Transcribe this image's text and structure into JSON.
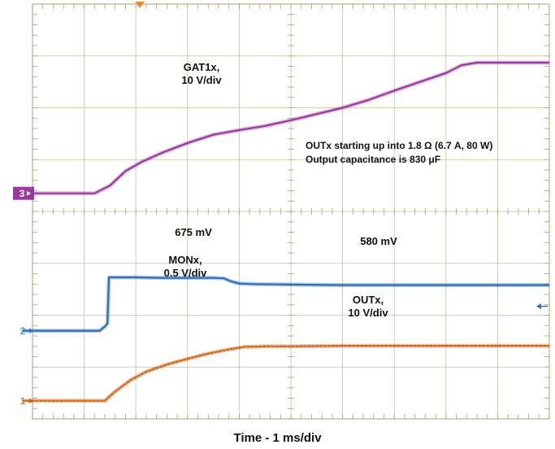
{
  "chart_data": {
    "type": "line",
    "title": "",
    "xlabel": "Time - 1 ms/div",
    "grid": true,
    "divisions": {
      "x": 10,
      "y": 8
    },
    "annotations": {
      "gat_label": [
        "GAT1x,",
        "10 V/div"
      ],
      "note": [
        "OUTx starting up into 1.8 Ω (6.7 A, 80 W)",
        "Output capacitance is 830 μF"
      ],
      "mon_peak": "675 mV",
      "mon_final": "580 mV",
      "mon_label": [
        "MONx,",
        "0.5 V/div"
      ],
      "out_label": [
        "OUTx,",
        "10 V/div"
      ]
    },
    "channel_markers": [
      "3",
      "2",
      "1"
    ],
    "units": {
      "x": "div",
      "y": "div"
    },
    "series": [
      {
        "name": "GAT1x",
        "marker": "3",
        "color": "#9a3a9f",
        "x": [
          -0.2,
          1.2,
          1.5,
          1.8,
          2.1,
          2.5,
          3.0,
          3.5,
          4.0,
          4.5,
          5.0,
          5.5,
          6.0,
          6.5,
          7.0,
          7.5,
          8.0,
          8.3,
          8.6,
          10.0
        ],
        "y": [
          4.35,
          4.35,
          4.5,
          4.78,
          4.95,
          5.13,
          5.32,
          5.48,
          5.57,
          5.65,
          5.76,
          5.88,
          6.0,
          6.15,
          6.33,
          6.5,
          6.67,
          6.82,
          6.87,
          6.87
        ]
      },
      {
        "name": "MONx",
        "marker": "2",
        "color": "#2e6fb5",
        "x": [
          -0.2,
          1.3,
          1.4,
          1.45,
          1.48,
          2.0,
          2.5,
          3.0,
          3.5,
          3.7,
          3.85,
          4.0,
          4.3,
          5.0,
          6.0,
          7.0,
          8.0,
          9.0,
          10.0
        ],
        "y": [
          1.7,
          1.7,
          1.78,
          1.84,
          2.73,
          2.73,
          2.72,
          2.72,
          2.72,
          2.71,
          2.65,
          2.61,
          2.6,
          2.59,
          2.58,
          2.58,
          2.58,
          2.58,
          2.58
        ]
      },
      {
        "name": "OUTx",
        "marker": "1",
        "color": "#c7611f",
        "x": [
          -0.2,
          1.4,
          1.6,
          1.9,
          2.2,
          2.6,
          3.0,
          3.4,
          3.8,
          4.1,
          4.5,
          5.0,
          6.0,
          7.0,
          8.0,
          9.0,
          10.0
        ],
        "y": [
          0.35,
          0.35,
          0.53,
          0.75,
          0.91,
          1.05,
          1.16,
          1.26,
          1.34,
          1.39,
          1.4,
          1.4,
          1.41,
          1.41,
          1.41,
          1.41,
          1.41
        ]
      }
    ]
  }
}
